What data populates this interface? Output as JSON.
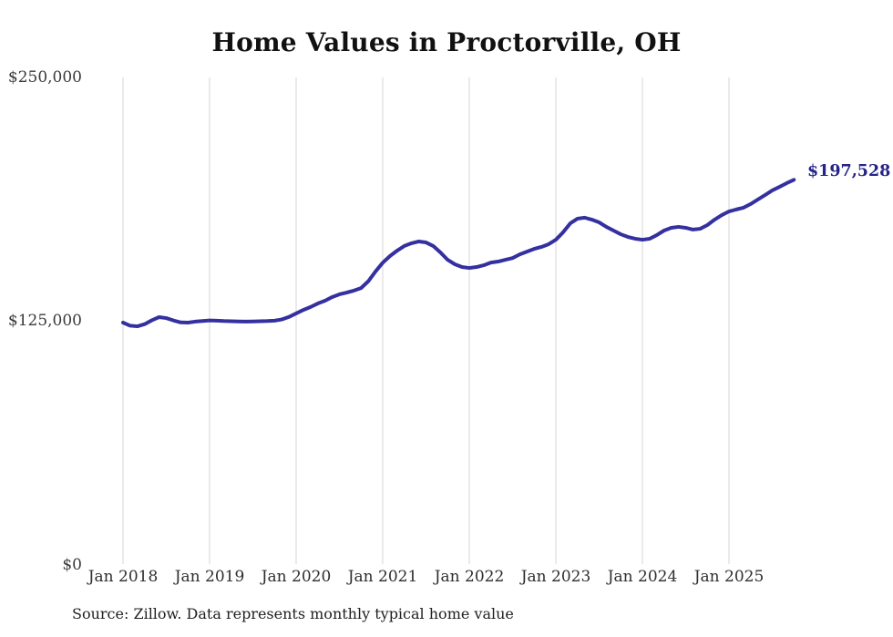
{
  "chart": {
    "title": "Home Values in Proctorville, OH",
    "y_ticks": [
      "$250,000",
      "$125,000",
      "$0"
    ],
    "x_ticks": [
      "Jan 2018",
      "Jan 2019",
      "Jan 2020",
      "Jan 2021",
      "Jan 2022",
      "Jan 2023",
      "Jan 2024",
      "Jan 2025"
    ],
    "end_label": "$197,528",
    "source_note": "Source: Zillow. Data represents monthly typical home value"
  },
  "chart_data": {
    "type": "line",
    "title": "Home Values in Proctorville, OH",
    "series_name": "Monthly typical home value",
    "unit": "USD",
    "frequency": "monthly",
    "x": [
      "2018-01",
      "2018-02",
      "2018-03",
      "2018-04",
      "2018-05",
      "2018-06",
      "2018-07",
      "2018-08",
      "2018-09",
      "2018-10",
      "2018-11",
      "2018-12",
      "2019-01",
      "2019-02",
      "2019-03",
      "2019-04",
      "2019-05",
      "2019-06",
      "2019-07",
      "2019-08",
      "2019-09",
      "2019-10",
      "2019-11",
      "2019-12",
      "2020-01",
      "2020-02",
      "2020-03",
      "2020-04",
      "2020-05",
      "2020-06",
      "2020-07",
      "2020-08",
      "2020-09",
      "2020-10",
      "2020-11",
      "2020-12",
      "2021-01",
      "2021-02",
      "2021-03",
      "2021-04",
      "2021-05",
      "2021-06",
      "2021-07",
      "2021-08",
      "2021-09",
      "2021-10",
      "2021-11",
      "2021-12",
      "2022-01",
      "2022-02",
      "2022-03",
      "2022-04",
      "2022-05",
      "2022-06",
      "2022-07",
      "2022-08",
      "2022-09",
      "2022-10",
      "2022-11",
      "2022-12",
      "2023-01",
      "2023-02",
      "2023-03",
      "2023-04",
      "2023-05",
      "2023-06",
      "2023-07",
      "2023-08",
      "2023-09",
      "2023-10",
      "2023-11",
      "2023-12",
      "2024-01",
      "2024-02",
      "2024-03",
      "2024-04",
      "2024-05",
      "2024-06",
      "2024-07",
      "2024-08",
      "2024-09",
      "2024-10",
      "2024-11",
      "2024-12",
      "2025-01",
      "2025-02",
      "2025-03",
      "2025-04",
      "2025-05",
      "2025-06",
      "2025-07",
      "2025-08",
      "2025-09",
      "2025-10"
    ],
    "values": [
      124300,
      122700,
      122400,
      123500,
      125500,
      127100,
      126600,
      125400,
      124400,
      124300,
      124800,
      125100,
      125400,
      125300,
      125100,
      125000,
      124900,
      124800,
      124900,
      125000,
      125100,
      125300,
      125900,
      127200,
      129000,
      130800,
      132300,
      134100,
      135500,
      137400,
      138800,
      139700,
      140700,
      142000,
      145500,
      150500,
      155000,
      158400,
      161200,
      163600,
      165000,
      165900,
      165400,
      163600,
      160300,
      156500,
      154200,
      152800,
      152300,
      152800,
      153700,
      155100,
      155600,
      156500,
      157400,
      159300,
      160700,
      162100,
      163100,
      164500,
      166800,
      170600,
      175200,
      177600,
      178100,
      177100,
      175700,
      173400,
      171500,
      169600,
      168200,
      167300,
      166800,
      167300,
      169200,
      171500,
      172900,
      173400,
      172900,
      172000,
      172400,
      174300,
      177100,
      179400,
      181300,
      182300,
      183200,
      185100,
      187400,
      189700,
      192100,
      193900,
      195800,
      197528
    ],
    "final_value": 197528,
    "end_label": "$197,528",
    "ylim": [
      0,
      250000
    ],
    "y_tick_values": [
      0,
      125000,
      250000
    ],
    "grid": "vertical lines at each January, no horizontal gridlines, no axis lines",
    "legend": "none",
    "line_color": "#34309f",
    "grid_color": "#d6d6d6",
    "end_label_color": "#262488"
  }
}
